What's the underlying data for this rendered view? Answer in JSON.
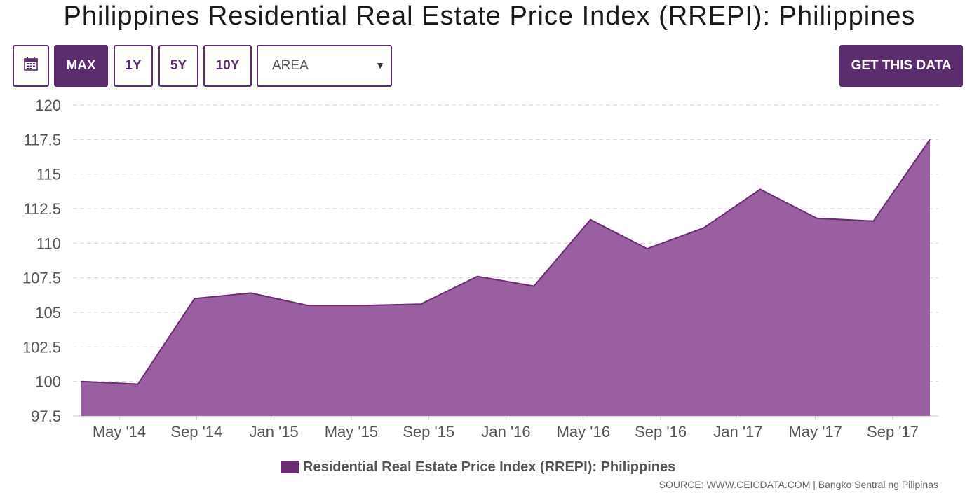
{
  "page": {
    "title": "Philippines Residential Real Estate Price Index (RREPI): Philippines"
  },
  "toolbar": {
    "calendar_icon": "calendar-icon",
    "buttons": [
      {
        "label": "MAX",
        "active": true
      },
      {
        "label": "1Y",
        "active": false
      },
      {
        "label": "5Y",
        "active": false
      },
      {
        "label": "10Y",
        "active": false
      }
    ],
    "chart_type_selected": "AREA",
    "get_data_label": "GET THIS DATA"
  },
  "colors": {
    "accent": "#5b2d6e",
    "area_fill": "#9a5fa0",
    "line": "#6a2d72",
    "grid": "#d8d8d8"
  },
  "chart_data": {
    "type": "area",
    "title": "Philippines Residential Real Estate Price Index (RREPI): Philippines",
    "xlabel": "",
    "ylabel": "",
    "ylim": [
      97.5,
      120
    ],
    "yticks": [
      "97.5",
      "100",
      "102.5",
      "105",
      "107.5",
      "110",
      "112.5",
      "115",
      "117.5",
      "120"
    ],
    "xticks": [
      "May '14",
      "Sep '14",
      "Jan '15",
      "May '15",
      "Sep '15",
      "Jan '16",
      "May '16",
      "Sep '16",
      "Jan '17",
      "May '17",
      "Sep '17"
    ],
    "grid": true,
    "legend": "bottom-center",
    "series": [
      {
        "name": "Residential Real Estate Price Index (RREPI): Philippines",
        "x": [
          "Mar 2014",
          "Jun 2014",
          "Sep 2014",
          "Dec 2014",
          "Mar 2015",
          "Jun 2015",
          "Sep 2015",
          "Dec 2015",
          "Mar 2016",
          "Jun 2016",
          "Sep 2016",
          "Dec 2016",
          "Mar 2017",
          "Jun 2017",
          "Sep 2017",
          "Dec 2017"
        ],
        "values": [
          100.0,
          99.8,
          106.0,
          106.4,
          105.5,
          105.5,
          105.6,
          107.6,
          106.9,
          111.7,
          109.6,
          111.1,
          113.9,
          111.8,
          111.6,
          117.5
        ]
      }
    ]
  },
  "footer": {
    "source": "SOURCE: WWW.CEICDATA.COM | Bangko Sentral ng Pilipinas"
  }
}
